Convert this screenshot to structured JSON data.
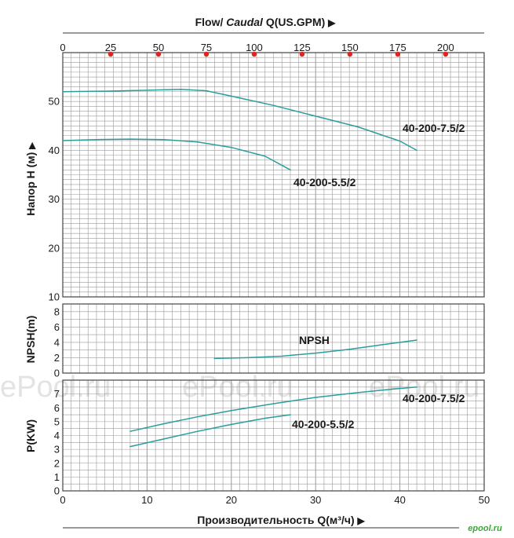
{
  "chart_data": [
    {
      "panel": "head",
      "type": "line",
      "ylabel": "Напор H (м)",
      "ylim": [
        10,
        60
      ],
      "yticks": [
        10,
        20,
        30,
        40,
        50
      ],
      "top_axis": {
        "label_prefix": "Flow/ ",
        "label_italic": "Caudal",
        "label_suffix": " Q(US.GPM)",
        "ticks": [
          0,
          25,
          50,
          75,
          100,
          125,
          150,
          175,
          200
        ]
      },
      "grid": true,
      "series": [
        {
          "name": "40-200-7.5/2",
          "color": "#2a9d9d",
          "x": [
            0,
            5,
            10,
            14,
            17,
            20,
            25,
            30,
            35,
            40,
            42
          ],
          "y": [
            52,
            52.1,
            52.3,
            52.5,
            52.2,
            51.1,
            49.2,
            47.0,
            44.8,
            41.9,
            40
          ]
        },
        {
          "name": "40-200-5.5/2",
          "color": "#2a9d9d",
          "x": [
            0,
            4,
            8,
            12,
            16,
            20,
            24,
            27
          ],
          "y": [
            42,
            42.2,
            42.3,
            42.2,
            41.7,
            40.6,
            38.8,
            36
          ]
        }
      ]
    },
    {
      "panel": "npsh",
      "type": "line",
      "ylabel": "NPSH(m)",
      "ylim": [
        0,
        9
      ],
      "yticks": [
        0,
        2,
        4,
        6,
        8
      ],
      "grid": true,
      "series": [
        {
          "name": "NPSH",
          "color": "#2a9d9d",
          "x": [
            18,
            22,
            26,
            30,
            34,
            38,
            42
          ],
          "y": [
            1.9,
            2.0,
            2.2,
            2.6,
            3.1,
            3.7,
            4.3
          ]
        }
      ]
    },
    {
      "panel": "power",
      "type": "line",
      "ylabel": "P(KW)",
      "xlabel": "Производительность Q(м³/ч)",
      "xlim": [
        0,
        50
      ],
      "xticks": [
        0,
        10,
        20,
        30,
        40,
        50
      ],
      "ylim": [
        0,
        8
      ],
      "yticks": [
        0,
        1,
        2,
        3,
        4,
        5,
        6,
        7
      ],
      "grid": true,
      "series": [
        {
          "name": "40-200-7.5/2",
          "color": "#2a9d9d",
          "x": [
            8,
            12,
            16,
            20,
            25,
            30,
            35,
            40,
            42
          ],
          "y": [
            4.3,
            4.85,
            5.35,
            5.8,
            6.3,
            6.75,
            7.1,
            7.4,
            7.5
          ]
        },
        {
          "name": "40-200-5.5/2",
          "color": "#2a9d9d",
          "x": [
            8,
            12,
            16,
            20,
            24,
            27
          ],
          "y": [
            3.2,
            3.75,
            4.3,
            4.8,
            5.25,
            5.5
          ]
        }
      ]
    }
  ],
  "watermarks": [
    "ePool.ru",
    "ePool.ru",
    "ePool.ru"
  ],
  "corner_logo": "epool.ru",
  "colors": {
    "curve": "#2a9d9d",
    "grid": "#9a9a9a",
    "marker": "#e32222",
    "frame": "#444444"
  }
}
